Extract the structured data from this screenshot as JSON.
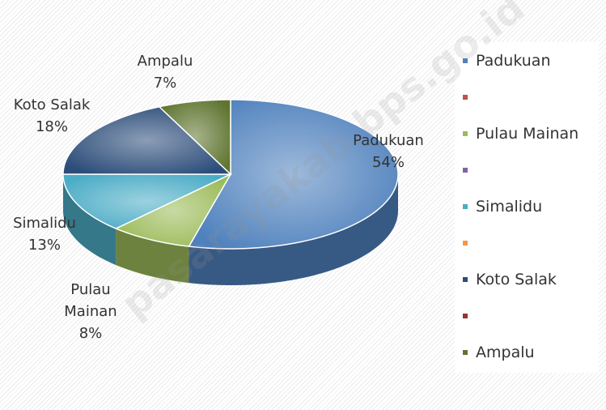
{
  "chart_data": {
    "type": "pie3d",
    "categories": [
      "Padukuan",
      null,
      "Pulau Mainan",
      null,
      "Simalidu",
      null,
      "Koto Salak",
      null,
      "Ampalu"
    ],
    "values": [
      54,
      0,
      8,
      0,
      13,
      0,
      18,
      0,
      7
    ],
    "value_labels": [
      "54%",
      null,
      "8%",
      null,
      "13%",
      null,
      "18%",
      null,
      "7%"
    ],
    "colors": [
      "#4f81bd",
      "#c0504d",
      "#9bbb59",
      "#8064a2",
      "#4bacc6",
      "#f79646",
      "#2c4d7a",
      "#943634",
      "#5f7530"
    ],
    "legend": "right",
    "watermark": "pasarayakab.bps.go.id"
  }
}
